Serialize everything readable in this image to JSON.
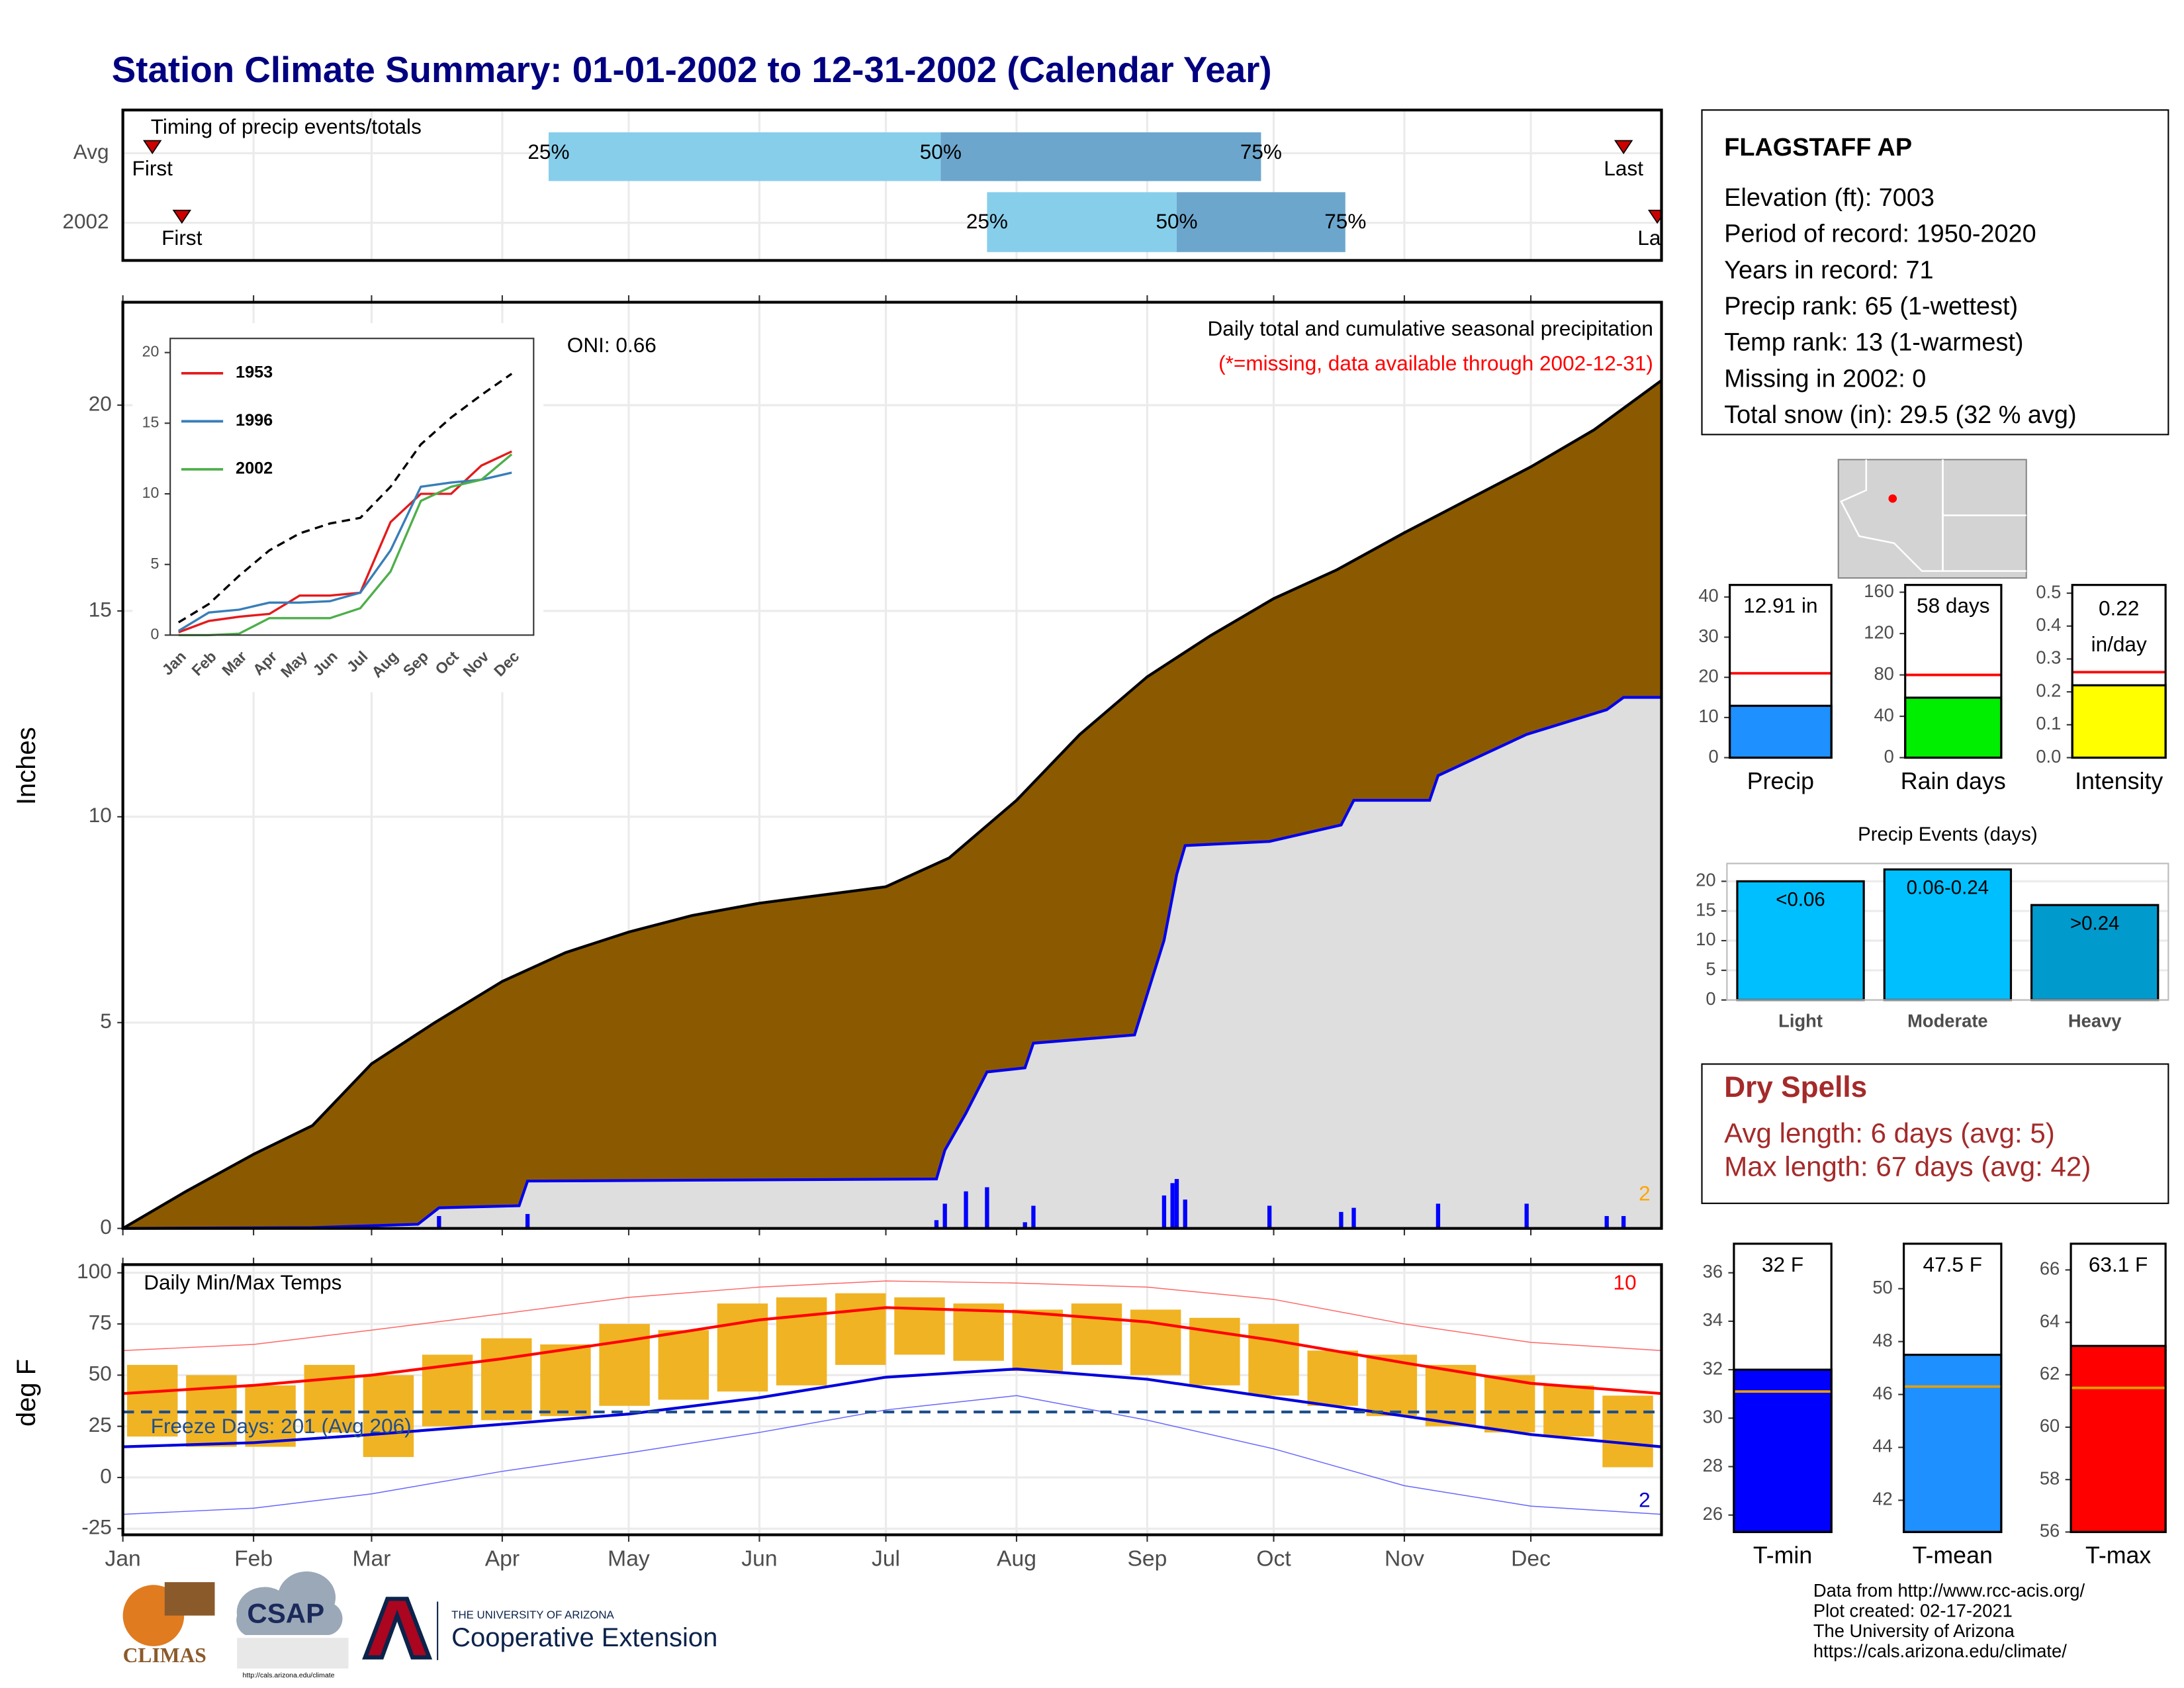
{
  "title": "Station Climate Summary: 01-01-2002 to 12-31-2002 (Calendar Year)",
  "station": {
    "name": "FLAGSTAFF AP",
    "lines": [
      "Elevation (ft): 7003",
      "Period of record: 1950-2020",
      "Years in record: 71",
      "Precip rank: 65 (1-wettest)",
      "Temp rank: 13 (1-warmest)",
      "Missing in 2002: 0",
      "Total snow (in): 29.5 (32 % avg)"
    ]
  },
  "dry_spells": {
    "title": "Dry Spells",
    "lines": [
      "Avg length: 6 days (avg: 5)",
      "Max length: 67 days (avg: 42)"
    ]
  },
  "footer": {
    "lines": [
      "Data from http://www.rcc-acis.org/",
      "Plot created: 02-17-2021",
      "The University of Arizona",
      "https://cals.arizona.edu/climate/"
    ],
    "logos": [
      "CLIMAS",
      "CSAP",
      "http://cals.arizona.edu/climate",
      "THE UNIVERSITY OF ARIZONA",
      "Cooperative Extension"
    ]
  },
  "chart_data": [
    {
      "type": "timing",
      "title": "Timing of precip events/totals",
      "categories": [
        "Avg",
        "2002"
      ],
      "xlim": [
        0,
        365
      ],
      "first": [
        7,
        14
      ],
      "q25": [
        101,
        205
      ],
      "q50": [
        194,
        250
      ],
      "q75": [
        270,
        290
      ],
      "last": [
        356,
        364
      ],
      "labels": {
        "first": "First",
        "last": "Last",
        "q25": "25%",
        "q50": "50%",
        "q75": "75%"
      },
      "colors": [
        "#87ceeb",
        "#6ca6cd",
        "#cc0000"
      ]
    },
    {
      "type": "area",
      "title": "Daily total and cumulative seasonal precipitation",
      "subtitle": "(*=missing, data available through 2002-12-31)",
      "annotation": "ONI: 0.66",
      "corner_note": "2",
      "y_label": "Inches",
      "xlim": [
        0,
        365
      ],
      "ylim": [
        0,
        22.5
      ],
      "yticks": [
        0,
        5,
        10,
        15,
        20
      ],
      "grid": true,
      "series": [
        {
          "color": "#8b5a00",
          "x": [
            0,
            15,
            31,
            45,
            59,
            74,
            90,
            105,
            120,
            135,
            151,
            166,
            181,
            196,
            212,
            227,
            243,
            258,
            273,
            288,
            304,
            319,
            334,
            349,
            365
          ],
          "values": [
            0,
            0.9,
            1.8,
            2.5,
            4.0,
            5.0,
            6.0,
            6.7,
            7.2,
            7.6,
            7.9,
            8.1,
            8.3,
            9.0,
            10.4,
            12.0,
            13.4,
            14.4,
            15.3,
            16.0,
            16.9,
            17.7,
            18.5,
            19.4,
            20.6
          ]
        },
        {
          "color": "#0000ee",
          "fill": "#dedede",
          "x": [
            0,
            45,
            70,
            75,
            94,
            96,
            193,
            195,
            200,
            205,
            214,
            216,
            240,
            247,
            250,
            252,
            272,
            289,
            292,
            310,
            312,
            333,
            352,
            356,
            365
          ],
          "values": [
            0,
            0.02,
            0.1,
            0.5,
            0.55,
            1.15,
            1.2,
            1.9,
            2.8,
            3.8,
            3.9,
            4.5,
            4.7,
            7.0,
            8.6,
            9.3,
            9.4,
            9.8,
            10.4,
            10.4,
            11.0,
            12.0,
            12.6,
            12.9,
            12.9
          ]
        },
        {
          "type": "bar",
          "color": "#0000ff",
          "x": [
            75,
            96,
            193,
            195,
            200,
            205,
            214,
            216,
            247,
            249,
            250,
            252,
            272,
            289,
            292,
            312,
            333,
            352,
            356
          ],
          "values": [
            0.3,
            0.35,
            0.2,
            0.6,
            0.9,
            1.0,
            0.15,
            0.55,
            0.8,
            1.1,
            1.2,
            0.7,
            0.55,
            0.4,
            0.5,
            0.6,
            0.6,
            0.3,
            0.3
          ]
        }
      ]
    },
    {
      "type": "line",
      "categories": [
        "Jan",
        "Feb",
        "Mar",
        "Apr",
        "May",
        "Jun",
        "Jul",
        "Aug",
        "Sep",
        "Oct",
        "Nov",
        "Dec"
      ],
      "ylim": [
        0,
        21
      ],
      "yticks": [
        0,
        5,
        10,
        15,
        20
      ],
      "series": [
        {
          "color": "#000000",
          "dash": true,
          "values": [
            0.9,
            2.2,
            4.2,
            6.0,
            7.2,
            7.9,
            8.3,
            10.5,
            13.5,
            15.4,
            17.0,
            18.5
          ]
        },
        {
          "name": "1953",
          "color": "#e41a1c",
          "values": [
            0.2,
            1.0,
            1.3,
            1.5,
            2.8,
            2.8,
            3.0,
            8.0,
            10.0,
            10.0,
            12.0,
            13.0
          ]
        },
        {
          "name": "1996",
          "color": "#377eb8",
          "values": [
            0.3,
            1.6,
            1.8,
            2.3,
            2.3,
            2.4,
            3.0,
            6.0,
            10.5,
            10.8,
            11.0,
            11.5
          ]
        },
        {
          "name": "2002",
          "color": "#4daf4a",
          "values": [
            0,
            0,
            0.1,
            1.2,
            1.2,
            1.2,
            1.9,
            4.5,
            9.5,
            10.5,
            11.0,
            12.8
          ]
        }
      ]
    },
    {
      "type": "temperature",
      "title": "Daily Min/Max Temps",
      "annotation": "Freeze Days: 201 (Avg 206)",
      "freeze": 32,
      "freeze_color": "#1f4e8c",
      "corner_high": "10",
      "corner_low": "2",
      "y_label": "deg F",
      "xlim": [
        0,
        365
      ],
      "ylim": [
        -28,
        104
      ],
      "yticks": [
        -25,
        0,
        25,
        50,
        75,
        100
      ],
      "grid": true,
      "xticks": [
        {
          "value": 0,
          "label": "Jan"
        },
        {
          "value": 31,
          "label": "Feb"
        },
        {
          "value": 59,
          "label": "Mar"
        },
        {
          "value": 90,
          "label": "Apr"
        },
        {
          "value": 120,
          "label": "May"
        },
        {
          "value": 151,
          "label": "Jun"
        },
        {
          "value": 181,
          "label": "Jul"
        },
        {
          "value": 212,
          "label": "Aug"
        },
        {
          "value": 243,
          "label": "Sep"
        },
        {
          "value": 273,
          "label": "Oct"
        },
        {
          "value": 304,
          "label": "Nov"
        },
        {
          "value": 334,
          "label": "Dec"
        }
      ],
      "range": {
        "color": "#f0b323",
        "x": [
          7,
          21,
          35,
          49,
          63,
          77,
          91,
          105,
          119,
          133,
          147,
          161,
          175,
          189,
          203,
          217,
          231,
          245,
          259,
          273,
          287,
          301,
          315,
          329,
          343,
          357
        ],
        "low": [
          20,
          15,
          15,
          22,
          10,
          25,
          28,
          30,
          35,
          38,
          42,
          45,
          55,
          60,
          57,
          52,
          55,
          50,
          45,
          40,
          35,
          30,
          25,
          22,
          20,
          5
        ],
        "high": [
          55,
          50,
          45,
          55,
          50,
          60,
          68,
          65,
          75,
          72,
          85,
          88,
          90,
          88,
          85,
          82,
          85,
          82,
          78,
          75,
          62,
          60,
          55,
          50,
          45,
          40
        ]
      },
      "series": [
        {
          "color": "#ff6666",
          "line_width": 0.7,
          "x": [
            0,
            31,
            59,
            90,
            120,
            151,
            181,
            212,
            243,
            273,
            304,
            334,
            365
          ],
          "values": [
            62,
            65,
            72,
            80,
            88,
            93,
            96,
            95,
            93,
            87,
            75,
            66,
            62
          ]
        },
        {
          "color": "#ff0000",
          "line_width": 2,
          "x": [
            0,
            31,
            59,
            90,
            120,
            151,
            181,
            212,
            243,
            273,
            304,
            334,
            365
          ],
          "values": [
            41,
            45,
            50,
            58,
            67,
            77,
            83,
            81,
            76,
            67,
            56,
            46,
            41
          ]
        },
        {
          "color": "#0000dd",
          "line_width": 2,
          "x": [
            0,
            31,
            59,
            90,
            120,
            151,
            181,
            212,
            243,
            273,
            304,
            334,
            365
          ],
          "values": [
            15,
            17,
            21,
            26,
            31,
            39,
            49,
            53,
            48,
            39,
            30,
            21,
            15
          ]
        },
        {
          "color": "#6666ff",
          "line_width": 0.7,
          "x": [
            0,
            31,
            59,
            90,
            120,
            151,
            181,
            212,
            243,
            273,
            304,
            334,
            365
          ],
          "values": [
            -18,
            -15,
            -8,
            3,
            12,
            22,
            33,
            40,
            28,
            14,
            -4,
            -14,
            -18
          ]
        }
      ]
    },
    {
      "type": "bar",
      "categories": [
        "Precip"
      ],
      "values": [
        12.91
      ],
      "value_labels": [
        "12.91 in"
      ],
      "color": "#1e90ff",
      "average": 21,
      "average_color": "#ff0000",
      "ylim": [
        0,
        43
      ],
      "yticks": [
        0,
        10,
        20,
        30,
        40
      ]
    },
    {
      "type": "bar",
      "categories": [
        "Rain days"
      ],
      "values": [
        58
      ],
      "value_labels": [
        "58 days"
      ],
      "color": "#00ee00",
      "average": 80,
      "average_color": "#ff0000",
      "ylim": [
        0,
        167
      ],
      "yticks": [
        0,
        40,
        80,
        120,
        160
      ]
    },
    {
      "type": "bar",
      "categories": [
        "Intensity"
      ],
      "values": [
        0.22
      ],
      "value_labels": [
        "0.22 in/day"
      ],
      "color": "#ffff00",
      "average": 0.26,
      "average_color": "#ff0000",
      "ylim": [
        0,
        0.525
      ],
      "yticks": [
        {
          "value": 0,
          "label": "0.0"
        },
        {
          "value": 0.1,
          "label": "0.1"
        },
        {
          "value": 0.2,
          "label": "0.2"
        },
        {
          "value": 0.3,
          "label": "0.3"
        },
        {
          "value": 0.4,
          "label": "0.4"
        },
        {
          "value": 0.5,
          "label": "0.5"
        }
      ]
    },
    {
      "type": "bar",
      "title": "Precip Events (days)",
      "categories": [
        "Light",
        "Moderate",
        "Heavy"
      ],
      "values": [
        20,
        22,
        16
      ],
      "value_labels": [
        "<0.06",
        "0.06-0.24",
        ">0.24"
      ],
      "colors": [
        "#00bfff",
        "#00bfff",
        "#009acd"
      ],
      "ylim": [
        0,
        23
      ],
      "yticks": [
        0,
        5,
        10,
        15,
        20
      ],
      "grid": true
    },
    {
      "type": "bar",
      "categories": [
        "T-min"
      ],
      "values": [
        32
      ],
      "value_labels": [
        "32 F"
      ],
      "color": "#0000ff",
      "average": 31.1,
      "average_color": "#e69f00",
      "ylim": [
        25.3,
        37.2
      ],
      "yticks": [
        26,
        28,
        30,
        32,
        34,
        36
      ]
    },
    {
      "type": "bar",
      "categories": [
        "T-mean"
      ],
      "values": [
        47.5
      ],
      "value_labels": [
        "47.5 F"
      ],
      "color": "#1e90ff",
      "average": 46.3,
      "average_color": "#e69f00",
      "ylim": [
        40.8,
        51.7
      ],
      "yticks": [
        42,
        44,
        46,
        48,
        50
      ]
    },
    {
      "type": "bar",
      "categories": [
        "T-max"
      ],
      "values": [
        63.1
      ],
      "value_labels": [
        "63.1 F"
      ],
      "color": "#ff0000",
      "average": 61.5,
      "average_color": "#e69f00",
      "ylim": [
        56,
        67
      ],
      "yticks": [
        56,
        58,
        60,
        62,
        64,
        66
      ]
    }
  ]
}
